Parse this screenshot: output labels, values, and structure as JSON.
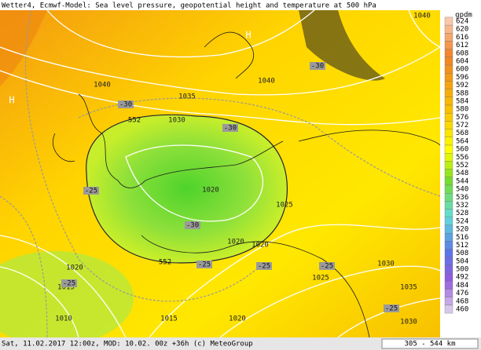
{
  "header": {
    "title": "Wetter4, Ecmwf-Model: Sea level pressure, geopotential height and temperature at 500 hPa"
  },
  "footer": {
    "info": "Sat, 11.02.2017 12:00z, MOD: 10.02. 00z +36h (c) MeteoGroup",
    "scale": "305 - 544 km"
  },
  "legend": {
    "unit": "gpdm",
    "levels": [
      "624",
      "620",
      "616",
      "612",
      "608",
      "604",
      "600",
      "596",
      "592",
      "588",
      "584",
      "580",
      "576",
      "572",
      "568",
      "564",
      "560",
      "556",
      "552",
      "548",
      "544",
      "540",
      "536",
      "532",
      "528",
      "524",
      "520",
      "516",
      "512",
      "508",
      "504",
      "500",
      "492",
      "484",
      "476",
      "468",
      "460"
    ]
  },
  "map": {
    "pressure_labels": [
      "1040",
      "1040",
      "1035",
      "1030",
      "1040",
      "1020",
      "1025",
      "1020",
      "1020",
      "1020",
      "1015",
      "1010",
      "1015",
      "1020",
      "1025",
      "1030",
      "1035",
      "1030"
    ],
    "temperature_labels": [
      "-30",
      "-30",
      "-30",
      "-25",
      "-30",
      "-25",
      "-25",
      "-25",
      "-25",
      "-25"
    ],
    "height_labels": [
      "552",
      "552"
    ],
    "high_markers": [
      "H",
      "H"
    ]
  }
}
